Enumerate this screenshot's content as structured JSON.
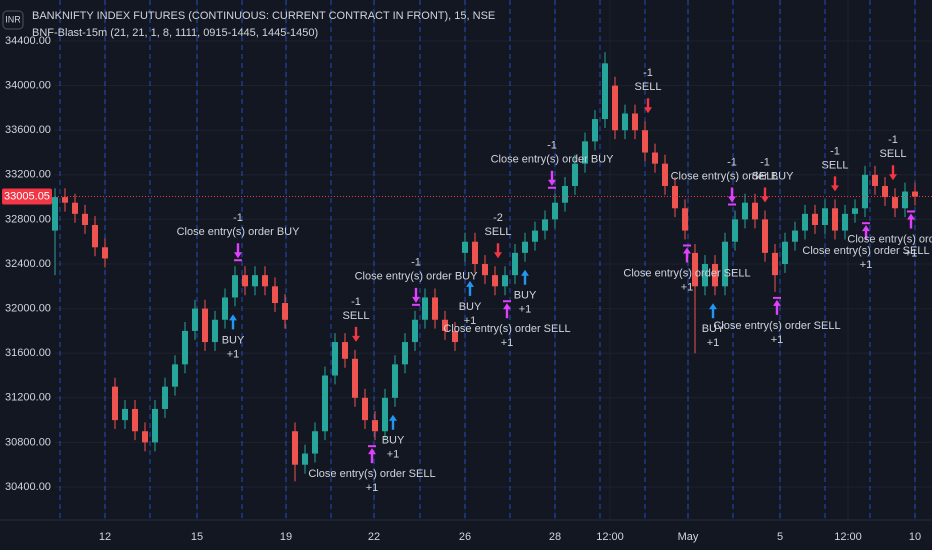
{
  "chart_data": {
    "type": "candlestick",
    "currency": "INR",
    "title": "BANKNIFTY INDEX FUTURES (CONTINUOUS: CURRENT CONTRACT IN FRONT), 15, NSE",
    "subtitle": "BNF-Blast-15m (21, 21, 1, 8, 1111, 0915-1445, 1445-1450)",
    "x": [
      0,
      1,
      2,
      3,
      4,
      5,
      6,
      7,
      8,
      9,
      10,
      11,
      12,
      13,
      14,
      15,
      16,
      17,
      18,
      19,
      20,
      21,
      22,
      23,
      24,
      25,
      26,
      27,
      28,
      29,
      30,
      31,
      32,
      33,
      34,
      35,
      36,
      37,
      38,
      39,
      40,
      41,
      42,
      43,
      44,
      45,
      46,
      47,
      48,
      49,
      50,
      51,
      52,
      53,
      54,
      55,
      56,
      57,
      58,
      59,
      60,
      61,
      62,
      63,
      64,
      65,
      66,
      67,
      68,
      69,
      70,
      71,
      72,
      73,
      74,
      75,
      76,
      77,
      78,
      79,
      80,
      81,
      82,
      83,
      84,
      85,
      86
    ],
    "open": [
      32700,
      33000,
      32950,
      32850,
      32750,
      32550,
      31300,
      31000,
      31100,
      30900,
      30800,
      31100,
      31300,
      31500,
      31800,
      32000,
      31700,
      31900,
      32100,
      32300,
      32200,
      32300,
      32200,
      32050,
      30900,
      30600,
      30700,
      30900,
      31400,
      31700,
      31550,
      31200,
      31000,
      30900,
      31200,
      31500,
      31700,
      31900,
      32100,
      31900,
      31800,
      32500,
      32600,
      32400,
      32300,
      32200,
      32300,
      32500,
      32600,
      32700,
      32800,
      32950,
      33100,
      33300,
      33500,
      33700,
      34000,
      33600,
      33750,
      33600,
      33400,
      33300,
      33100,
      32900,
      32500,
      32200,
      32400,
      32200,
      32600,
      32800,
      32950,
      32800,
      32500,
      32400,
      32600,
      32700,
      32850,
      32750,
      32900,
      32700,
      32850,
      32900,
      33200,
      33100,
      33000,
      32900,
      33050
    ],
    "high": [
      33080,
      33080,
      33030,
      32930,
      32830,
      32630,
      31380,
      31180,
      31180,
      30980,
      31180,
      31380,
      31580,
      31880,
      32080,
      32080,
      31980,
      32180,
      32380,
      32380,
      32380,
      32380,
      32280,
      32130,
      30980,
      30780,
      30980,
      31480,
      31780,
      31780,
      31630,
      31280,
      31080,
      31280,
      31580,
      31780,
      31980,
      32180,
      32180,
      31980,
      31880,
      32680,
      32680,
      32480,
      32380,
      32380,
      32580,
      32680,
      32780,
      32880,
      33030,
      33180,
      33380,
      33580,
      33780,
      34300,
      34080,
      33830,
      33830,
      33680,
      33480,
      33380,
      33180,
      32980,
      32580,
      32480,
      32480,
      32680,
      32880,
      33030,
      33030,
      32880,
      32580,
      32680,
      32780,
      32930,
      32930,
      32980,
      32980,
      32930,
      32980,
      33280,
      33280,
      33180,
      33080,
      33130,
      33130
    ],
    "low": [
      32300,
      32870,
      32770,
      32670,
      32470,
      32370,
      30920,
      30920,
      30820,
      30720,
      30720,
      31020,
      31220,
      31420,
      31720,
      31620,
      31620,
      31820,
      32020,
      32120,
      32120,
      32120,
      31970,
      31820,
      30450,
      30520,
      30620,
      30820,
      31320,
      31470,
      31120,
      30920,
      30820,
      30820,
      31120,
      31420,
      31620,
      31820,
      31820,
      31720,
      31620,
      32420,
      32320,
      32220,
      32120,
      32120,
      32220,
      32420,
      32520,
      32620,
      32720,
      32870,
      33020,
      33220,
      33420,
      33620,
      33520,
      33520,
      33520,
      33320,
      33220,
      33020,
      32820,
      32620,
      31600,
      32120,
      32120,
      32120,
      32520,
      32720,
      32720,
      32420,
      32150,
      32320,
      32520,
      32620,
      32670,
      32670,
      32620,
      32620,
      32770,
      32820,
      33020,
      32920,
      32820,
      32820,
      32925
    ],
    "close": [
      33000,
      32950,
      32850,
      32750,
      32550,
      32450,
      31000,
      31100,
      30900,
      30800,
      31100,
      31300,
      31500,
      31800,
      32000,
      31700,
      31900,
      32100,
      32300,
      32200,
      32300,
      32200,
      32050,
      31900,
      30600,
      30700,
      30900,
      31400,
      31700,
      31550,
      31200,
      31000,
      30900,
      31200,
      31500,
      31700,
      31900,
      32100,
      31900,
      31800,
      31700,
      32600,
      32400,
      32300,
      32200,
      32300,
      32500,
      32600,
      32700,
      32800,
      32950,
      33100,
      33300,
      33500,
      33700,
      34200,
      33600,
      33750,
      33600,
      33400,
      33300,
      33100,
      32900,
      32700,
      32200,
      32400,
      32200,
      32600,
      32800,
      32950,
      32800,
      32500,
      32300,
      32600,
      32700,
      32850,
      32750,
      32900,
      32700,
      32850,
      32900,
      33200,
      33100,
      33000,
      32900,
      33050,
      33005.05
    ],
    "up_color": "#26a69a",
    "down_color": "#ef5350",
    "xlim": [
      -5.5,
      87.7
    ],
    "ylim": [
      30104,
      34768
    ],
    "xticks": [
      {
        "value": 5,
        "label": "12"
      },
      {
        "value": 14.2,
        "label": "15"
      },
      {
        "value": 23.1,
        "label": "19"
      },
      {
        "value": 31.9,
        "label": "22"
      },
      {
        "value": 41,
        "label": "26"
      },
      {
        "value": 50,
        "label": "28"
      },
      {
        "value": 55.5,
        "label": "12:00"
      },
      {
        "value": 63.3,
        "label": "May"
      },
      {
        "value": 72.5,
        "label": "5"
      },
      {
        "value": 79.3,
        "label": "12:00"
      },
      {
        "value": 86,
        "label": "10"
      }
    ],
    "yticks": [
      {
        "value": 30400,
        "label": "30400.00"
      },
      {
        "value": 30800,
        "label": "30800.00"
      },
      {
        "value": 31200,
        "label": "31200.00"
      },
      {
        "value": 31600,
        "label": "31600.00"
      },
      {
        "value": 32000,
        "label": "32000.00"
      },
      {
        "value": 32400,
        "label": "32400.00"
      },
      {
        "value": 32800,
        "label": "32800.00"
      },
      {
        "value": 33200,
        "label": "33200.00"
      },
      {
        "value": 33600,
        "label": "33600.00"
      },
      {
        "value": 34000,
        "label": "34000.00"
      },
      {
        "value": 34400,
        "label": "34400.00"
      }
    ],
    "grid": true,
    "session_breaks": [
      0.5,
      5,
      9.5,
      14.2,
      18.7,
      23.1,
      27.6,
      31.9,
      36.5,
      41,
      45.5,
      50,
      54.5,
      59,
      63.3,
      67.8,
      72.5,
      77,
      81.5,
      86
    ],
    "last_price": 33005.05,
    "last_price_color": "#f23645",
    "signal_colors": {
      "buy": "#2196f3",
      "sell": "#f23645",
      "close_buy": "#e040fb",
      "close_sell": "#e040fb"
    },
    "signals": [
      {
        "type": "buy",
        "x": 17.8,
        "lines": [
          "BUY",
          "+1"
        ]
      },
      {
        "type": "close_buy",
        "x": 18.3,
        "lines": [
          "-1",
          "Close entry(s) order BUY"
        ]
      },
      {
        "type": "sell",
        "x": 30.1,
        "lines": [
          "-1",
          "SELL"
        ]
      },
      {
        "type": "close_sell",
        "x": 31.7,
        "lines": [
          "Close entry(s) order SELL",
          "+1"
        ]
      },
      {
        "type": "buy",
        "x": 33.8,
        "lines": [
          "BUY",
          "+1"
        ]
      },
      {
        "type": "close_buy",
        "x": 36.1,
        "lines": [
          "-1",
          "Close entry(s) order BUY"
        ]
      },
      {
        "type": "buy",
        "x": 41.5,
        "lines": [
          "BUY",
          "+1"
        ]
      },
      {
        "type": "sell",
        "x": 44.3,
        "lines": [
          "-2",
          "SELL"
        ]
      },
      {
        "type": "close_sell",
        "x": 45.2,
        "lines": [
          "Close entry(s) order SELL",
          "+1"
        ]
      },
      {
        "type": "buy",
        "x": 47,
        "lines": [
          "BUY",
          "+1"
        ]
      },
      {
        "type": "close_buy",
        "x": 49.7,
        "lines": [
          "-1",
          "Close entry(s) order BUY"
        ]
      },
      {
        "type": "sell",
        "x": 59.3,
        "lines": [
          "-1",
          "SELL"
        ]
      },
      {
        "type": "close_sell",
        "x": 63.2,
        "lines": [
          "Close entry(s) order SELL",
          "+1"
        ]
      },
      {
        "type": "buy",
        "x": 65.8,
        "lines": [
          "BUY",
          "+1"
        ]
      },
      {
        "type": "close_buy",
        "x": 67.7,
        "lines": [
          "-1",
          "Close entry(s) order BUY"
        ]
      },
      {
        "type": "sell",
        "x": 71,
        "lines": [
          "-1",
          "SELL"
        ]
      },
      {
        "type": "close_sell",
        "x": 72.2,
        "lines": [
          "Close entry(s) order SELL",
          "+1"
        ]
      },
      {
        "type": "sell",
        "x": 78,
        "lines": [
          "-1",
          "SELL"
        ]
      },
      {
        "type": "close_sell",
        "x": 81.1,
        "lines": [
          "Close entry(s) order SELL",
          "+1"
        ]
      },
      {
        "type": "sell",
        "x": 83.8,
        "lines": [
          "-1",
          "SELL"
        ]
      },
      {
        "type": "close_sell",
        "x": 85.6,
        "lines": [
          "Close entry(s) order SELL",
          "+1"
        ]
      }
    ]
  }
}
